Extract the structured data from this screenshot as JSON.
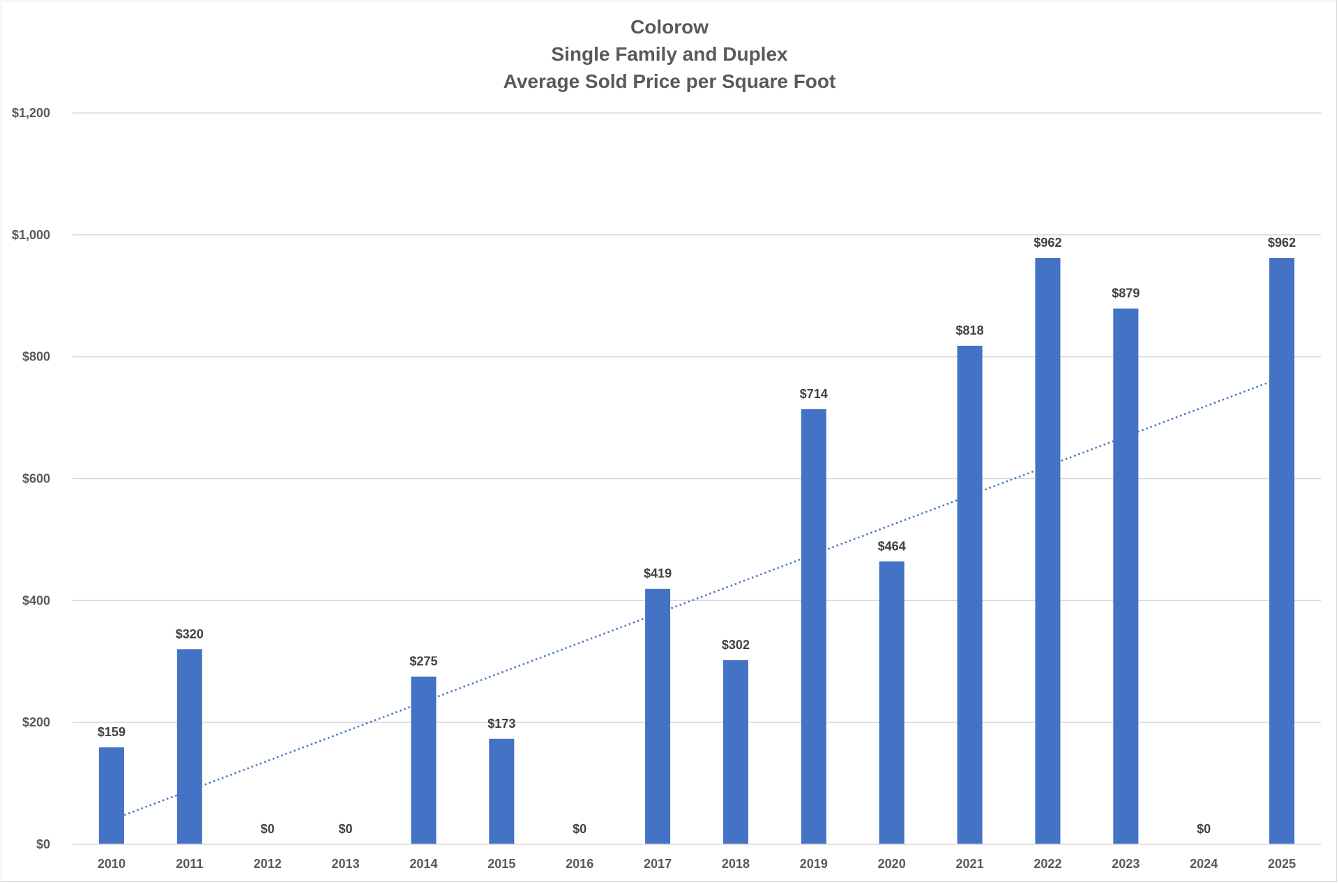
{
  "chart_data": {
    "type": "bar",
    "title": [
      "Colorow",
      "Single Family and Duplex",
      "Average Sold Price per Square Foot"
    ],
    "xlabel": "",
    "ylabel": "",
    "categories": [
      "2010",
      "2011",
      "2012",
      "2013",
      "2014",
      "2015",
      "2016",
      "2017",
      "2018",
      "2019",
      "2020",
      "2021",
      "2022",
      "2023",
      "2024",
      "2025"
    ],
    "values": [
      159,
      320,
      0,
      0,
      275,
      173,
      0,
      419,
      302,
      714,
      464,
      818,
      962,
      879,
      0,
      962
    ],
    "data_labels": [
      "$159",
      "$320",
      "$0",
      "$0",
      "$275",
      "$173",
      "$0",
      "$419",
      "$302",
      "$714",
      "$464",
      "$818",
      "$962",
      "$879",
      "$0",
      "$962"
    ],
    "ylim": [
      0,
      1200
    ],
    "yticks": [
      0,
      200,
      400,
      600,
      800,
      1000,
      1200
    ],
    "ytick_labels": [
      "$0",
      "$200",
      "$400",
      "$600",
      "$800",
      "$1,000",
      "$1,200"
    ],
    "grid": true,
    "legend": "none",
    "bar_color": "#4472C4",
    "trendline": {
      "type": "linear",
      "style": "dotted",
      "color": "#4472C4",
      "start_value": 40,
      "end_value": 766
    }
  }
}
